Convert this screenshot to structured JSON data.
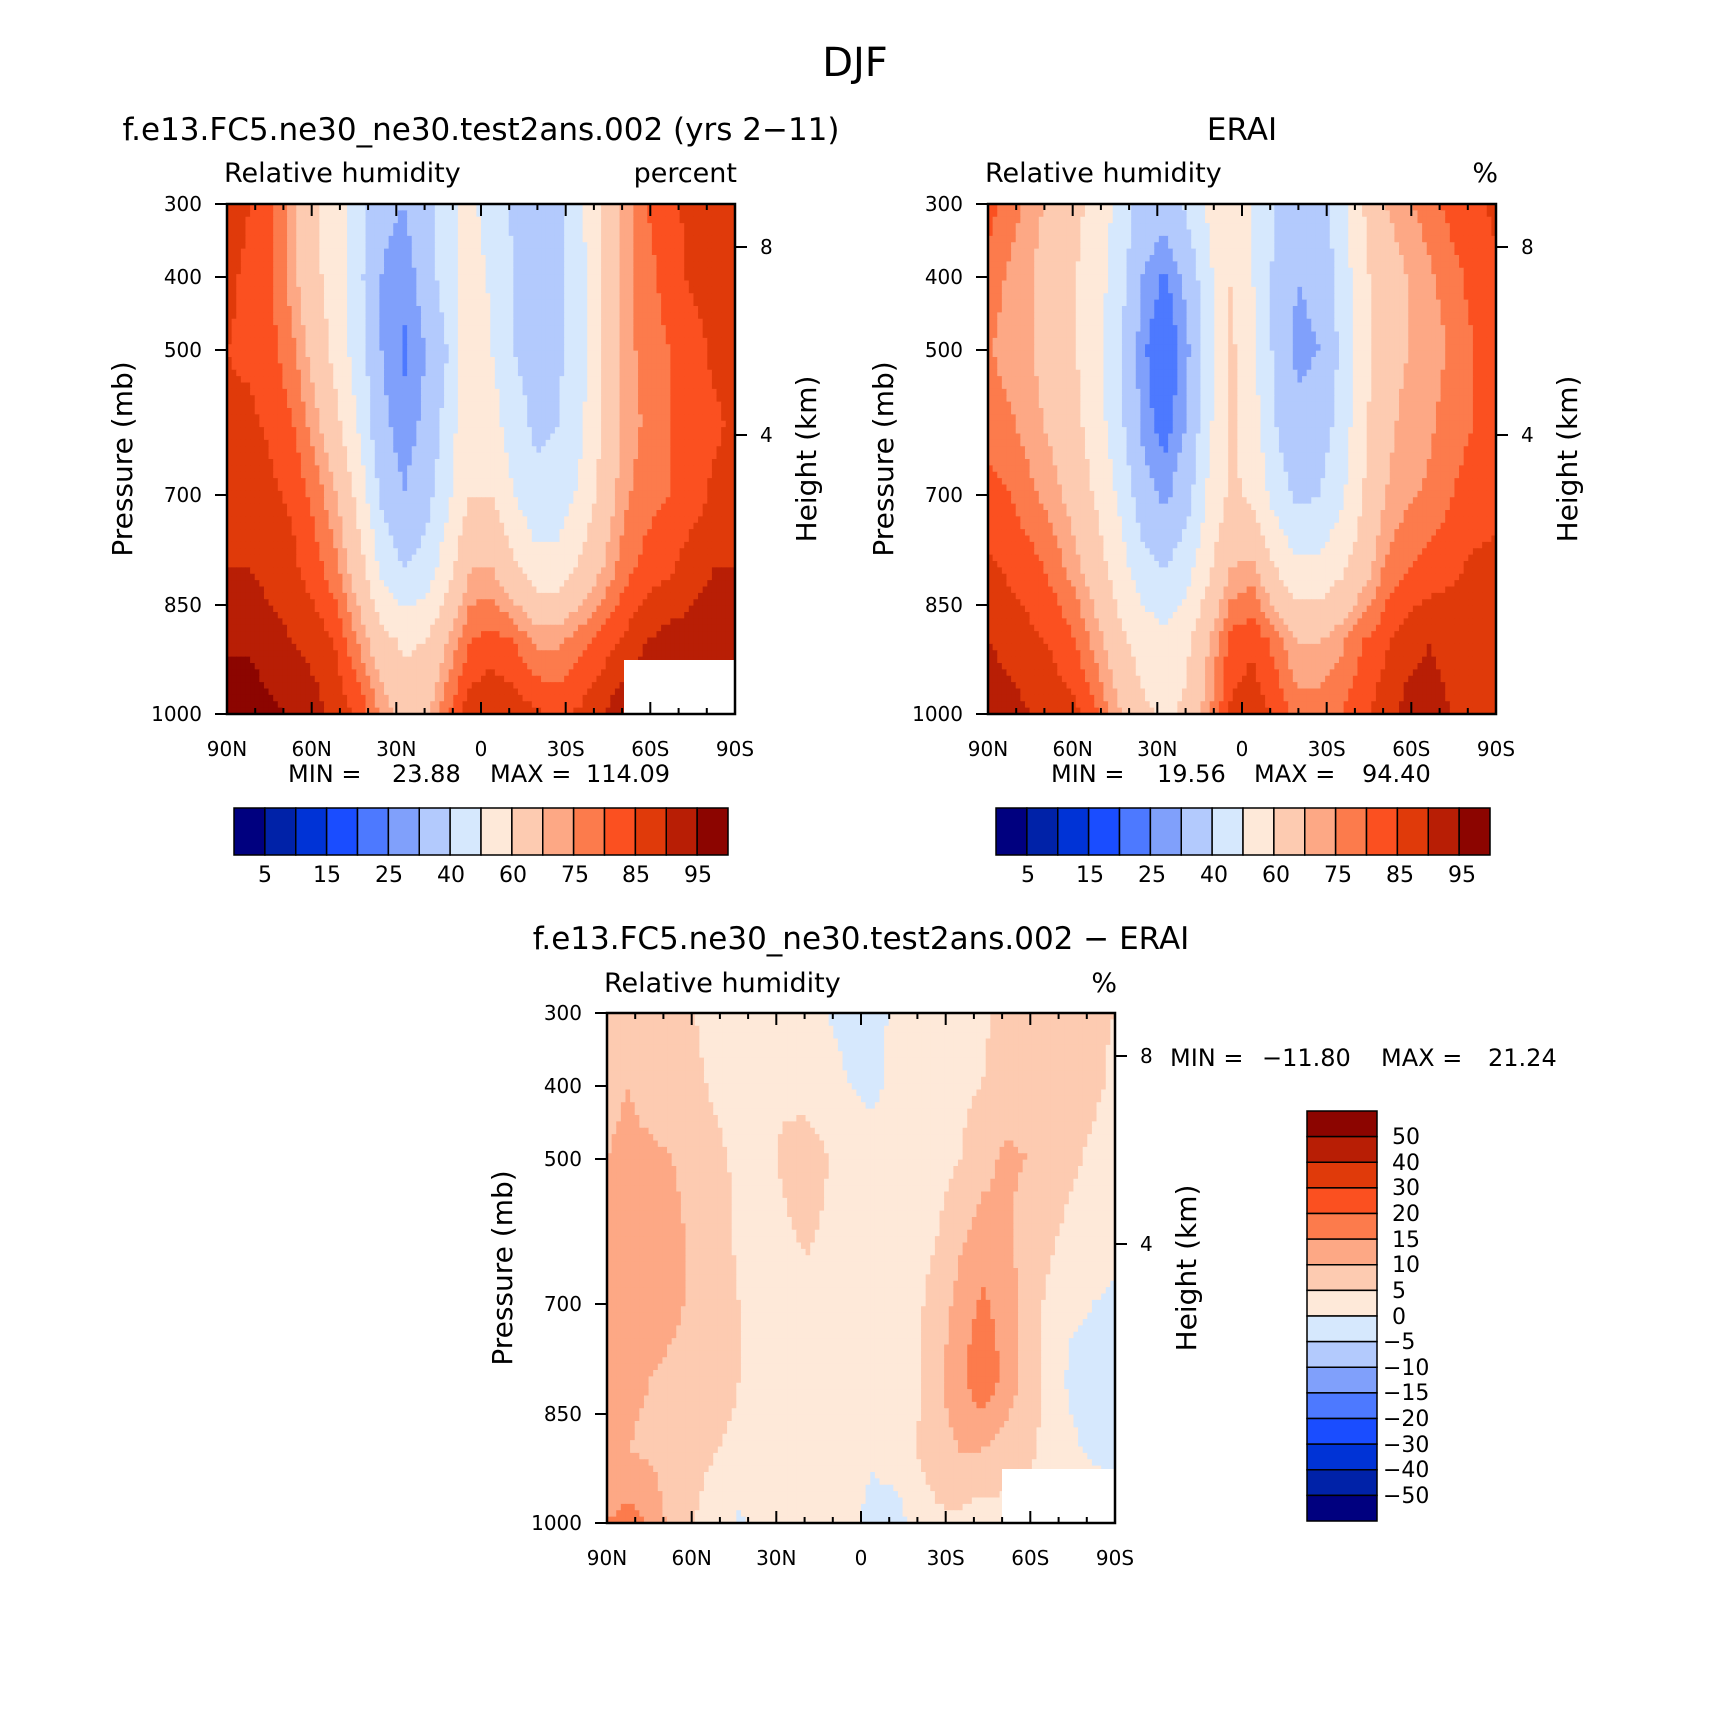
{
  "figure_title": "DJF",
  "colors": {
    "diverging": [
      "#00007f",
      "#0022a8",
      "#0033d6",
      "#1a4dff",
      "#4d79ff",
      "#80a0fb",
      "#b3cafd",
      "#d6e8fd",
      "#fee9d9",
      "#fdcbb1",
      "#fda885",
      "#fc7b4c",
      "#fb5020",
      "#e03a0a",
      "#b81e05",
      "#8c0500"
    ]
  },
  "chart_data": [
    {
      "type": "heatmap",
      "panel": "model",
      "title": "f.e13.FC5.ne30_ne30.test2ans.002 (yrs 2−11)",
      "left_label": "Relative humidity",
      "right_label": "percent",
      "ylabel": "Pressure (mb)",
      "ylabel2": "Height (km)",
      "xticks": [
        "90N",
        "60N",
        "30N",
        "0",
        "30S",
        "60S",
        "90S"
      ],
      "yticks": [
        "300",
        "400",
        "500",
        "700",
        "850",
        "1000"
      ],
      "y2ticks": [
        "8",
        "4"
      ],
      "x_range": [
        90,
        -90
      ],
      "y_range_mb": [
        300,
        1000
      ],
      "min_label": "MIN =",
      "min_value": "23.88",
      "max_label": "MAX =",
      "max_value": "114.09",
      "colorbar_levels": [
        "5",
        "15",
        "25",
        "40",
        "60",
        "75",
        "85",
        "95"
      ],
      "missing_region": "lowest levels 50S–90S",
      "field": [
        [
          88,
          85,
          80,
          72,
          62,
          55,
          42,
          32,
          30,
          36,
          48,
          52,
          45,
          38,
          34,
          38,
          48,
          62,
          72,
          80,
          84,
          86,
          88,
          88
        ],
        [
          86,
          84,
          80,
          72,
          62,
          55,
          42,
          30,
          26,
          34,
          46,
          56,
          48,
          40,
          36,
          38,
          46,
          62,
          72,
          78,
          82,
          86,
          88,
          88
        ],
        [
          85,
          84,
          82,
          76,
          66,
          56,
          44,
          30,
          24,
          30,
          40,
          58,
          50,
          40,
          36,
          38,
          46,
          60,
          72,
          78,
          80,
          82,
          86,
          86
        ],
        [
          86,
          86,
          84,
          80,
          72,
          62,
          48,
          32,
          26,
          32,
          44,
          60,
          54,
          44,
          38,
          40,
          48,
          60,
          72,
          76,
          80,
          82,
          84,
          86
        ],
        [
          88,
          88,
          86,
          84,
          78,
          70,
          56,
          38,
          30,
          36,
          48,
          60,
          60,
          50,
          42,
          44,
          52,
          64,
          74,
          78,
          80,
          82,
          86,
          86
        ],
        [
          90,
          90,
          88,
          86,
          82,
          76,
          64,
          48,
          40,
          44,
          56,
          70,
          70,
          62,
          54,
          54,
          62,
          70,
          78,
          82,
          84,
          88,
          90,
          90
        ],
        [
          94,
          94,
          92,
          90,
          88,
          84,
          74,
          64,
          58,
          60,
          70,
          80,
          82,
          80,
          74,
          74,
          78,
          82,
          86,
          90,
          92,
          92,
          92,
          92
        ],
        [
          98,
          98,
          96,
          94,
          92,
          88,
          84,
          74,
          66,
          68,
          80,
          88,
          90,
          88,
          86,
          84,
          86,
          90,
          94,
          96,
          96,
          94,
          94,
          94
        ]
      ]
    },
    {
      "type": "heatmap",
      "panel": "obs",
      "title": "ERAI",
      "left_label": "Relative humidity",
      "right_label": "%",
      "ylabel": "Pressure (mb)",
      "ylabel2": "Height (km)",
      "xticks": [
        "90N",
        "60N",
        "30N",
        "0",
        "30S",
        "60S",
        "90S"
      ],
      "yticks": [
        "300",
        "400",
        "500",
        "700",
        "850",
        "1000"
      ],
      "y2ticks": [
        "8",
        "4"
      ],
      "x_range": [
        90,
        -90
      ],
      "y_range_mb": [
        300,
        1000
      ],
      "min_label": "MIN =",
      "min_value": "19.56",
      "max_label": "MAX =",
      "max_value": "94.40",
      "colorbar_levels": [
        "5",
        "15",
        "25",
        "40",
        "60",
        "75",
        "85",
        "95"
      ],
      "field": [
        [
          82,
          78,
          72,
          68,
          62,
          56,
          46,
          36,
          34,
          42,
          52,
          58,
          50,
          40,
          34,
          36,
          46,
          60,
          70,
          74,
          78,
          82,
          84,
          86
        ],
        [
          78,
          74,
          70,
          66,
          60,
          54,
          44,
          30,
          24,
          32,
          48,
          60,
          50,
          38,
          30,
          32,
          44,
          58,
          66,
          70,
          74,
          78,
          82,
          84
        ],
        [
          76,
          72,
          70,
          66,
          60,
          52,
          40,
          26,
          20,
          28,
          46,
          62,
          52,
          38,
          28,
          30,
          42,
          56,
          66,
          70,
          72,
          76,
          80,
          82
        ],
        [
          78,
          76,
          72,
          68,
          62,
          54,
          42,
          28,
          22,
          30,
          48,
          62,
          54,
          40,
          32,
          34,
          44,
          58,
          68,
          72,
          74,
          78,
          80,
          82
        ],
        [
          82,
          80,
          76,
          72,
          66,
          58,
          48,
          34,
          28,
          36,
          52,
          62,
          58,
          46,
          38,
          40,
          48,
          60,
          70,
          74,
          76,
          80,
          82,
          84
        ],
        [
          86,
          84,
          82,
          78,
          72,
          64,
          54,
          44,
          40,
          46,
          58,
          70,
          72,
          60,
          52,
          52,
          58,
          66,
          76,
          80,
          82,
          84,
          86,
          86
        ],
        [
          90,
          88,
          86,
          84,
          80,
          72,
          62,
          56,
          52,
          58,
          70,
          82,
          84,
          78,
          70,
          70,
          74,
          80,
          84,
          88,
          90,
          88,
          86,
          86
        ],
        [
          94,
          92,
          90,
          88,
          86,
          80,
          70,
          62,
          58,
          62,
          74,
          86,
          88,
          84,
          78,
          78,
          80,
          84,
          88,
          92,
          92,
          90,
          88,
          88
        ]
      ]
    },
    {
      "type": "heatmap",
      "panel": "difference",
      "title": "f.e13.FC5.ne30_ne30.test2ans.002 − ERAI",
      "left_label": "Relative humidity",
      "right_label": "%",
      "ylabel": "Pressure (mb)",
      "ylabel2": "Height (km)",
      "xticks": [
        "90N",
        "60N",
        "30N",
        "0",
        "30S",
        "60S",
        "90S"
      ],
      "yticks": [
        "300",
        "400",
        "500",
        "700",
        "850",
        "1000"
      ],
      "y2ticks": [
        "8",
        "4"
      ],
      "x_range": [
        90,
        -90
      ],
      "y_range_mb": [
        300,
        1000
      ],
      "min_label": "MIN =",
      "min_value": "−11.80",
      "max_label": "MAX =",
      "max_value": "21.24",
      "colorbar_levels": [
        "50",
        "40",
        "30",
        "20",
        "15",
        "10",
        "5",
        "0",
        "−5",
        "−10",
        "−15",
        "−20",
        "−30",
        "−40",
        "−50"
      ],
      "missing_region": "lowest levels 50S–90S",
      "field": [
        [
          8,
          9,
          8,
          6,
          5,
          3,
          2,
          2,
          1,
          1,
          0,
          -1,
          -2,
          1,
          2,
          3,
          3,
          4,
          7,
          8,
          9,
          8,
          6,
          5
        ],
        [
          9,
          10,
          8,
          7,
          6,
          4,
          3,
          3,
          4,
          2,
          1,
          0,
          -1,
          1,
          2,
          3,
          4,
          5,
          7,
          8,
          8,
          7,
          6,
          4
        ],
        [
          10,
          11,
          11,
          10,
          8,
          6,
          4,
          3,
          6,
          9,
          5,
          2,
          2,
          3,
          4,
          3,
          5,
          8,
          11,
          10,
          7,
          6,
          4,
          3
        ],
        [
          12,
          12,
          12,
          11,
          9,
          7,
          4,
          3,
          4,
          6,
          4,
          1,
          1,
          2,
          3,
          5,
          9,
          12,
          11,
          8,
          6,
          4,
          3,
          2
        ],
        [
          12,
          12,
          12,
          11,
          9,
          7,
          5,
          3,
          2,
          3,
          3,
          1,
          1,
          2,
          4,
          7,
          12,
          16,
          13,
          8,
          4,
          1,
          0,
          -1
        ],
        [
          11,
          11,
          10,
          9,
          8,
          7,
          5,
          3,
          3,
          3,
          3,
          2,
          2,
          2,
          4,
          9,
          14,
          19,
          14,
          8,
          3,
          -1,
          -2,
          -2
        ],
        [
          11,
          10,
          9,
          7,
          6,
          5,
          4,
          3,
          4,
          5,
          3,
          2,
          1,
          3,
          5,
          8,
          10,
          10,
          8,
          6,
          4,
          1,
          -1,
          -2
        ],
        [
          15,
          17,
          14,
          8,
          5,
          3,
          -1,
          2,
          4,
          4,
          3,
          2,
          -2,
          -3,
          2,
          4,
          4,
          2,
          3,
          3,
          3,
          4,
          4,
          4
        ]
      ]
    }
  ]
}
